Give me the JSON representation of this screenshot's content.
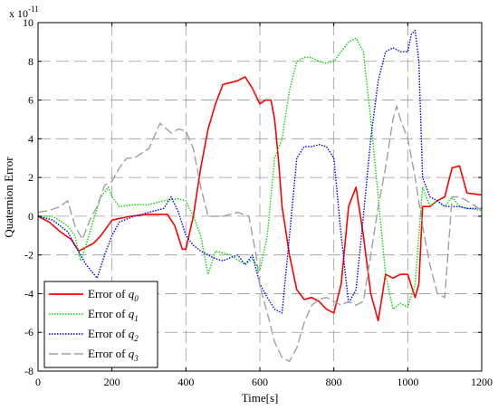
{
  "chart_data": {
    "type": "line",
    "title": "",
    "xlabel": "Time[s]",
    "ylabel": "Quaternion Error",
    "y_exponent_label": "x 10",
    "y_exponent_power": "-11",
    "xlim": [
      0,
      1200
    ],
    "ylim": [
      -8,
      10
    ],
    "x_ticks": [
      0,
      200,
      400,
      600,
      800,
      1000,
      1200
    ],
    "y_ticks": [
      -8,
      -6,
      -4,
      -2,
      0,
      2,
      4,
      6,
      8,
      10
    ],
    "x_tick_labels": [
      "0",
      "200",
      "400",
      "600",
      "800",
      "1000",
      "1200"
    ],
    "y_tick_labels": [
      "-8",
      "-6",
      "-4",
      "-2",
      "0",
      "2",
      "4",
      "6",
      "8",
      "10"
    ],
    "grid": true,
    "legend_position": "bottom-left",
    "series": [
      {
        "name": "Error of q0",
        "legend_prefix": "Error of ",
        "legend_var": "q",
        "legend_sub": "0",
        "color": "#ff0000",
        "dash": "solid",
        "x": [
          0,
          30,
          60,
          90,
          110,
          130,
          150,
          170,
          200,
          250,
          300,
          350,
          370,
          390,
          400,
          420,
          440,
          460,
          480,
          500,
          540,
          560,
          580,
          600,
          615,
          630,
          640,
          650,
          660,
          680,
          700,
          720,
          740,
          760,
          780,
          800,
          820,
          840,
          860,
          880,
          900,
          920,
          940,
          960,
          980,
          1000,
          1020,
          1030,
          1040,
          1060,
          1080,
          1100,
          1120,
          1140,
          1160,
          1200
        ],
        "y": [
          0,
          -0.3,
          -0.8,
          -1.2,
          -1.8,
          -1.6,
          -1.4,
          -1.0,
          -0.2,
          0.0,
          0.1,
          0.1,
          -0.5,
          -1.7,
          -1.7,
          0.0,
          2.5,
          4.5,
          5.8,
          6.8,
          7.0,
          7.2,
          6.6,
          5.8,
          6.0,
          6.0,
          5.0,
          3.0,
          0.5,
          -2.0,
          -3.8,
          -4.3,
          -4.2,
          -4.4,
          -4.8,
          -5.0,
          -3.5,
          0.5,
          1.5,
          -1.0,
          -4.0,
          -5.4,
          -3.0,
          -3.2,
          -3.0,
          -3.0,
          -4.2,
          -3.5,
          0.5,
          0.5,
          0.8,
          1.0,
          2.5,
          2.6,
          1.2,
          1.1
        ]
      },
      {
        "name": "Error of q1",
        "legend_prefix": "Error of ",
        "legend_var": "q",
        "legend_sub": "1",
        "color": "#00dd00",
        "dash": "dotted",
        "x": [
          0,
          40,
          80,
          100,
          115,
          130,
          150,
          170,
          190,
          200,
          220,
          260,
          300,
          340,
          380,
          400,
          420,
          440,
          460,
          480,
          520,
          560,
          580,
          600,
          620,
          640,
          660,
          680,
          700,
          720,
          740,
          760,
          780,
          800,
          820,
          840,
          860,
          880,
          900,
          920,
          940,
          960,
          980,
          1000,
          1020,
          1040,
          1060,
          1080,
          1100,
          1120,
          1140,
          1160,
          1200
        ],
        "y": [
          0,
          0,
          -0.5,
          -1.0,
          -2.3,
          -1.5,
          -0.2,
          1.0,
          1.5,
          1.0,
          0.5,
          0.6,
          0.6,
          0.8,
          0.9,
          0.8,
          0.0,
          -1.0,
          -3.0,
          -1.8,
          -2.0,
          -2.5,
          -2.2,
          -2.8,
          -1.0,
          3.0,
          4.0,
          6.5,
          8.0,
          8.2,
          8.2,
          8.0,
          7.9,
          8.0,
          8.5,
          9.0,
          9.2,
          8.5,
          5.0,
          1.0,
          -3.0,
          -4.8,
          -4.5,
          -4.7,
          -3.5,
          1.5,
          0.5,
          0.8,
          0.5,
          1.0,
          0.5,
          0.4,
          0.3
        ]
      },
      {
        "name": "Error of q2",
        "legend_prefix": "Error of ",
        "legend_var": "q",
        "legend_sub": "2",
        "color": "#0000ff",
        "dash": "dotted",
        "x": [
          0,
          40,
          80,
          100,
          130,
          160,
          180,
          200,
          220,
          260,
          300,
          340,
          360,
          380,
          400,
          420,
          440,
          460,
          480,
          500,
          540,
          560,
          580,
          600,
          620,
          640,
          660,
          680,
          700,
          720,
          740,
          760,
          780,
          800,
          820,
          840,
          860,
          880,
          900,
          920,
          940,
          960,
          980,
          1000,
          1010,
          1020,
          1030,
          1040,
          1060,
          1080,
          1100,
          1120,
          1140,
          1160,
          1200
        ],
        "y": [
          0,
          -0.2,
          -0.8,
          -1.5,
          -2.5,
          -3.2,
          -2.0,
          -1.0,
          -0.3,
          0.0,
          0.2,
          0.4,
          1.0,
          0.2,
          -1.0,
          -1.5,
          -1.8,
          -2.0,
          -2.2,
          -2.3,
          -2.0,
          -2.5,
          -2.0,
          -3.5,
          -4.2,
          -4.8,
          -5.0,
          -1.0,
          3.0,
          3.6,
          3.6,
          3.7,
          3.6,
          3.0,
          -1.0,
          -4.5,
          -3.8,
          0.0,
          4.0,
          7.0,
          8.5,
          8.7,
          8.5,
          8.5,
          9.4,
          9.6,
          8.0,
          2.0,
          1.0,
          0.8,
          0.5,
          0.5,
          0.5,
          0.4,
          0.4
        ]
      },
      {
        "name": "Error of q3",
        "legend_prefix": "Error of ",
        "legend_var": "q",
        "legend_sub": "3",
        "color": "#a0a0a0",
        "dash": "dashed",
        "x": [
          0,
          30,
          60,
          80,
          100,
          120,
          140,
          160,
          180,
          200,
          220,
          240,
          260,
          300,
          330,
          360,
          380,
          400,
          420,
          440,
          460,
          500,
          540,
          570,
          590,
          600,
          620,
          640,
          660,
          680,
          700,
          720,
          740,
          760,
          780,
          800,
          820,
          840,
          860,
          880,
          900,
          920,
          940,
          960,
          970,
          980,
          1000,
          1020,
          1040,
          1060,
          1080,
          1100,
          1120,
          1140,
          1160,
          1200
        ],
        "y": [
          0.2,
          0.3,
          0.5,
          0.8,
          -0.5,
          -1.2,
          -0.2,
          0.5,
          1.6,
          1.8,
          2.5,
          3.0,
          3.0,
          3.5,
          4.8,
          4.3,
          4.5,
          4.4,
          3.5,
          1.5,
          0.0,
          0.0,
          0.2,
          0.0,
          -2.0,
          -3.6,
          -5.0,
          -6.5,
          -7.3,
          -7.5,
          -6.8,
          -5.5,
          -4.6,
          -4.3,
          -4.2,
          -4.4,
          -4.6,
          -4.4,
          -4.6,
          -4.4,
          -2.0,
          0.5,
          2.5,
          5.0,
          5.7,
          5.0,
          4.0,
          2.0,
          -0.5,
          -2.5,
          -4.0,
          -4.2,
          1.0,
          1.0,
          0.8,
          0.3
        ]
      }
    ]
  }
}
